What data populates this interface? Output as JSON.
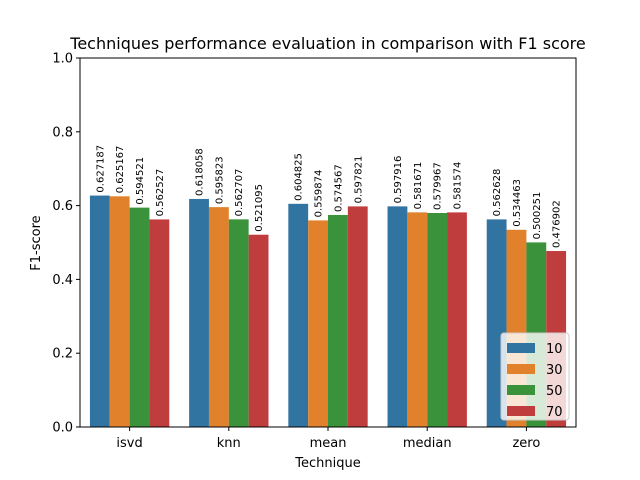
{
  "chart_data": {
    "type": "bar",
    "title": "Techniques performance evaluation in comparison with F1 score",
    "xlabel": "Technique",
    "ylabel": "F1-score",
    "ylim": [
      0,
      1.0
    ],
    "yticks": [
      "0.0",
      "0.2",
      "0.4",
      "0.6",
      "0.8",
      "1.0"
    ],
    "categories": [
      "isvd",
      "knn",
      "mean",
      "median",
      "zero"
    ],
    "series": [
      {
        "name": "10",
        "color": "#3274a1",
        "values": [
          0.627187,
          0.618058,
          0.604825,
          0.597916,
          0.562628
        ],
        "labels": [
          "0.627187",
          "0.618058",
          "0.604825",
          "0.597916",
          "0.562628"
        ]
      },
      {
        "name": "30",
        "color": "#e1812c",
        "values": [
          0.625167,
          0.595823,
          0.559874,
          0.581671,
          0.534463
        ],
        "labels": [
          "0.625167",
          "0.595823",
          "0.559874",
          "0.581671",
          "0.534463"
        ]
      },
      {
        "name": "50",
        "color": "#3a923a",
        "values": [
          0.594521,
          0.562707,
          0.574567,
          0.579967,
          0.500251
        ],
        "labels": [
          "0.594521",
          "0.562707",
          "0.574567",
          "0.579967",
          "0.500251"
        ]
      },
      {
        "name": "70",
        "color": "#c03d3e",
        "values": [
          0.562527,
          0.521095,
          0.597821,
          0.581574,
          0.476902
        ],
        "labels": [
          "0.562527",
          "0.521095",
          "0.597821",
          "0.581574",
          "0.476902"
        ]
      }
    ],
    "grid": false,
    "legend_position": "lower-right"
  }
}
